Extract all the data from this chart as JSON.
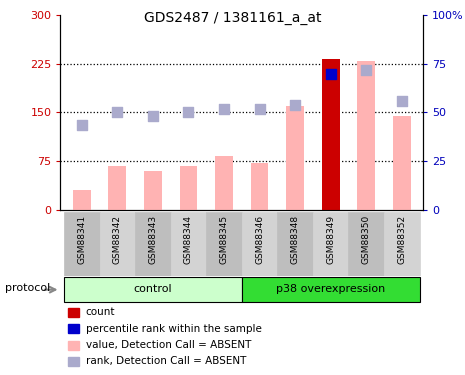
{
  "title": "GDS2487 / 1381161_a_at",
  "samples": [
    "GSM88341",
    "GSM88342",
    "GSM88343",
    "GSM88344",
    "GSM88345",
    "GSM88346",
    "GSM88348",
    "GSM88349",
    "GSM88350",
    "GSM88352"
  ],
  "bar_values": [
    30,
    68,
    60,
    68,
    83,
    73,
    160,
    232,
    230,
    145
  ],
  "rank_dots_left_scale": [
    130,
    150,
    145,
    150,
    155,
    155,
    162,
    210,
    215,
    168
  ],
  "is_count": [
    0,
    0,
    0,
    0,
    0,
    0,
    0,
    1,
    0,
    0
  ],
  "bar_color_absent": "#FFB3B3",
  "bar_color_count": "#CC0000",
  "dot_color_absent": "#AAAACC",
  "dot_color_count": "#0000CC",
  "ylim_left": [
    0,
    300
  ],
  "ylim_right": [
    0,
    100
  ],
  "yticks_left": [
    0,
    75,
    150,
    225,
    300
  ],
  "yticks_right": [
    0,
    25,
    50,
    75,
    100
  ],
  "ytick_labels_left": [
    "0",
    "75",
    "150",
    "225",
    "300"
  ],
  "ytick_labels_right": [
    "0",
    "25",
    "50",
    "75",
    "100%"
  ],
  "hlines": [
    75,
    150,
    225
  ],
  "n_control": 5,
  "n_p38": 5,
  "control_label": "control",
  "p38_label": "p38 overexpression",
  "protocol_label": "protocol",
  "legend_items": [
    {
      "label": "count",
      "color": "#CC0000"
    },
    {
      "label": "percentile rank within the sample",
      "color": "#0000CC"
    },
    {
      "label": "value, Detection Call = ABSENT",
      "color": "#FFB3B3"
    },
    {
      "label": "rank, Detection Call = ABSENT",
      "color": "#AAAACC"
    }
  ],
  "bar_width": 0.5,
  "dot_size": 50,
  "control_bg": "#CCFFCC",
  "p38_bg": "#33DD33",
  "plot_bg": "#FFFFFF",
  "title_color_left": "#CC0000",
  "title_color_right": "#0000BB",
  "gray_even": "#BEBEBE",
  "gray_odd": "#D3D3D3"
}
